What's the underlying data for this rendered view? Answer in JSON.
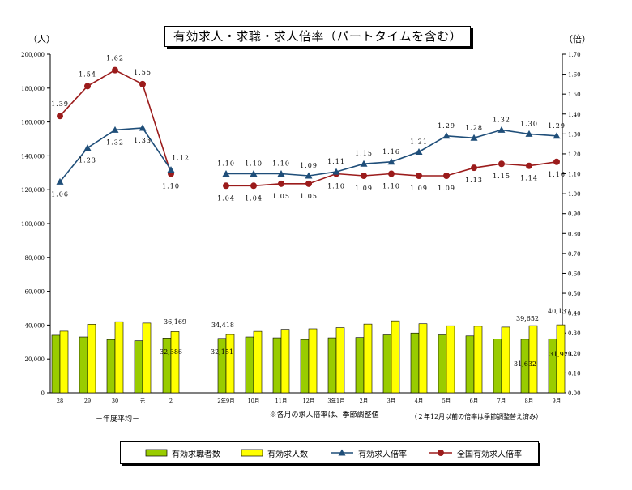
{
  "chart_data": {
    "type": "bar",
    "title": "有効求人・求職・求人倍率（パートタイムを含む）",
    "ylabel_left": "（人）",
    "ylabel_right": "（倍）",
    "ylim_left": [
      0,
      200000
    ],
    "ylim_right": [
      0.0,
      1.7
    ],
    "left_ticks": [
      "0",
      "20,000",
      "40,000",
      "60,000",
      "80,000",
      "100,000",
      "120,000",
      "140,000",
      "160,000",
      "180,000",
      "200,000"
    ],
    "right_ticks": [
      "0.00",
      "0.10",
      "0.20",
      "0.30",
      "0.40",
      "0.50",
      "0.60",
      "0.70",
      "0.80",
      "0.90",
      "1.00",
      "1.10",
      "1.20",
      "1.30",
      "1.40",
      "1.50",
      "1.60",
      "1.70"
    ],
    "categories": [
      "28",
      "29",
      "30",
      "元",
      "2",
      "2年9月",
      "10月",
      "11月",
      "12月",
      "3年1月",
      "2月",
      "3月",
      "4月",
      "5月",
      "6月",
      "7月",
      "8月",
      "9月"
    ],
    "group_note": "－年度平均－",
    "note_center": "※各月の求人倍率は、季節調整値",
    "note_right": "（２年12月以前の倍率は季節調整替え済み）",
    "series": [
      {
        "name": "有効求職者数",
        "type": "bar",
        "axis": "left",
        "color": "#99cc00",
        "values": [
          34000,
          33000,
          31500,
          30800,
          32386,
          32151,
          33000,
          32500,
          31500,
          32500,
          32700,
          34200,
          35300,
          34200,
          33600,
          31800,
          31632,
          31923
        ]
      },
      {
        "name": "有効求人数",
        "type": "bar",
        "axis": "left",
        "color": "#ffff00",
        "values": [
          36400,
          40500,
          42000,
          41200,
          36169,
          34418,
          36300,
          37500,
          37800,
          38500,
          40600,
          42500,
          40800,
          39600,
          39300,
          38800,
          39652,
          40137
        ]
      },
      {
        "name": "有効求人倍率",
        "type": "line",
        "axis": "right",
        "color": "#1f4e79",
        "values": [
          1.06,
          1.23,
          1.32,
          1.33,
          1.12,
          1.1,
          1.1,
          1.1,
          1.09,
          1.11,
          1.15,
          1.16,
          1.21,
          1.29,
          1.28,
          1.32,
          1.3,
          1.29
        ]
      },
      {
        "name": "全国有効求人倍率",
        "type": "line",
        "axis": "right",
        "color": "#9b1b1b",
        "values": [
          1.39,
          1.54,
          1.62,
          1.55,
          1.1,
          1.04,
          1.04,
          1.05,
          1.05,
          1.1,
          1.09,
          1.1,
          1.09,
          1.09,
          1.13,
          1.15,
          1.14,
          1.16
        ]
      }
    ],
    "bar_value_labels": {
      "有効求職者数": {
        "2": "32,386",
        "2年9月": "32,151",
        "8月": "31,632",
        "9月": "31,923"
      },
      "有効求人数": {
        "2": "36,169",
        "2年9月": "34,418",
        "8月": "39,652",
        "9月": "40,137"
      }
    },
    "line_value_labels": {
      "有効求人倍率": [
        "1.06",
        "1.23",
        "1.32",
        "1.33",
        "1.12",
        "1.10",
        "1.10",
        "1.10",
        "1.09",
        "1.11",
        "1.15",
        "1.16",
        "1.21",
        "1.29",
        "1.28",
        "1.32",
        "1.30",
        "1.29"
      ],
      "全国有効求人倍率": [
        "1.39",
        "1.54",
        "1.62",
        "1.55",
        "1.10",
        "1.04",
        "1.04",
        "1.05",
        "1.05",
        "1.10",
        "1.09",
        "1.10",
        "1.09",
        "1.09",
        "1.13",
        "1.15",
        "1.14",
        "1.16"
      ]
    },
    "legend_position": "bottom"
  }
}
